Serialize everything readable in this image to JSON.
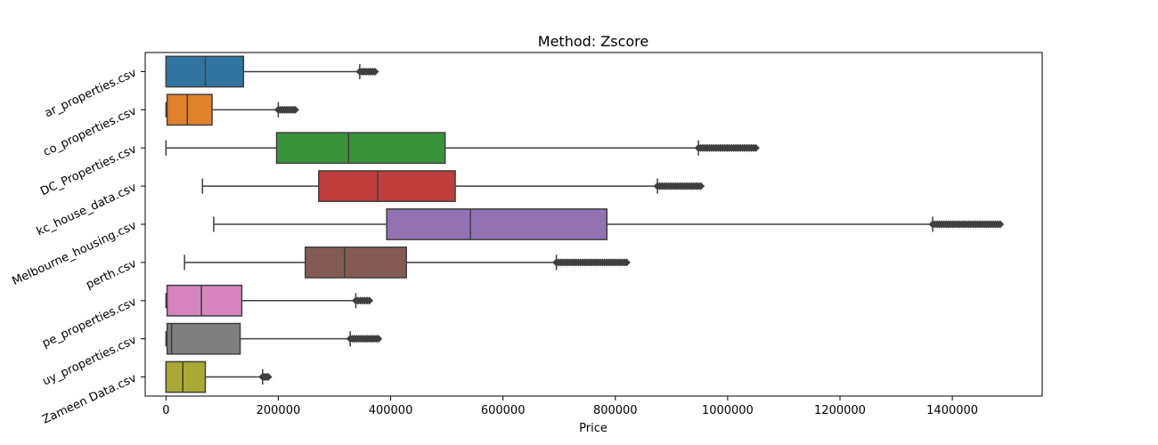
{
  "chart_data": {
    "type": "box",
    "orientation": "horizontal",
    "title": "Method: Zscore",
    "xlabel": "Price",
    "ylabel": "",
    "xlim": [
      -37000,
      1560000
    ],
    "xticks": [
      0,
      200000,
      400000,
      600000,
      800000,
      1000000,
      1200000,
      1400000
    ],
    "xtick_labels": [
      "0",
      "200000",
      "400000",
      "600000",
      "800000",
      "1000000",
      "1200000",
      "1400000"
    ],
    "grid": false,
    "categories": [
      "ar_properties.csv",
      "co_properties.csv",
      "DC_Properties.csv",
      "kc_house_data.csv",
      "Melbourne_housing.csv",
      "perth.csv",
      "pe_properties.csv",
      "uy_properties.csv",
      "Zameen Data.csv"
    ],
    "series": [
      {
        "category": "ar_properties.csv",
        "color": "#3274a1",
        "whisker_low": 0,
        "q1": 0,
        "median": 70000,
        "q3": 138000,
        "whisker_high": 345000,
        "outlier_range": [
          345000,
          372000
        ]
      },
      {
        "category": "co_properties.csv",
        "color": "#e1812c",
        "whisker_low": 0,
        "q1": 2000,
        "median": 38000,
        "q3": 82000,
        "whisker_high": 200000,
        "outlier_range": [
          200000,
          230000
        ]
      },
      {
        "category": "DC_Properties.csv",
        "color": "#3a923a",
        "whisker_low": 0,
        "q1": 197000,
        "median": 325000,
        "q3": 497000,
        "whisker_high": 948000,
        "outlier_range": [
          948000,
          1050000
        ]
      },
      {
        "category": "kc_house_data.csv",
        "color": "#c03d3e",
        "whisker_low": 65000,
        "q1": 272000,
        "median": 377000,
        "q3": 515000,
        "whisker_high": 875000,
        "outlier_range": [
          875000,
          952000
        ]
      },
      {
        "category": "Melbourne_housing.csv",
        "color": "#9372b2",
        "whisker_low": 85000,
        "q1": 393000,
        "median": 542000,
        "q3": 785000,
        "whisker_high": 1365000,
        "outlier_range": [
          1365000,
          1485000
        ]
      },
      {
        "category": "perth.csv",
        "color": "#845b53",
        "whisker_low": 33000,
        "q1": 248000,
        "median": 318000,
        "q3": 428000,
        "whisker_high": 695000,
        "outlier_range": [
          695000,
          820000
        ]
      },
      {
        "category": "pe_properties.csv",
        "color": "#d684bd",
        "whisker_low": 0,
        "q1": 2000,
        "median": 63000,
        "q3": 135000,
        "whisker_high": 338000,
        "outlier_range": [
          338000,
          362000
        ]
      },
      {
        "category": "uy_properties.csv",
        "color": "#7f7f7f",
        "whisker_low": 0,
        "q1": 2000,
        "median": 10000,
        "q3": 132000,
        "whisker_high": 328000,
        "outlier_range": [
          328000,
          378000
        ]
      },
      {
        "category": "Zameen Data.csv",
        "color": "#a9aa35",
        "whisker_low": 0,
        "q1": 0,
        "median": 30000,
        "q3": 70000,
        "whisker_high": 172000,
        "outlier_range": [
          172000,
          182000
        ]
      }
    ]
  }
}
